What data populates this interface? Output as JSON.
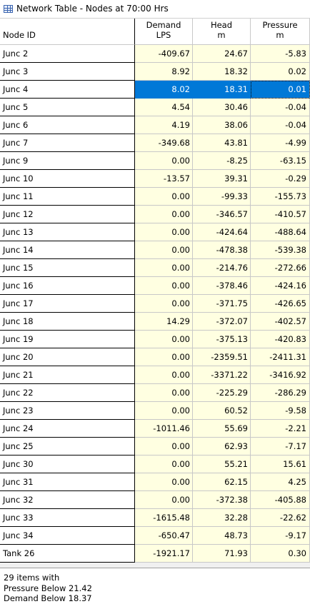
{
  "window": {
    "title": "Network Table - Nodes at 70:00 Hrs"
  },
  "columns": [
    {
      "line1": "Node ID",
      "line2": ""
    },
    {
      "line1": "Demand",
      "line2": "LPS"
    },
    {
      "line1": "Head",
      "line2": "m"
    },
    {
      "line1": "Pressure",
      "line2": "m"
    }
  ],
  "selected_row": 2,
  "rows": [
    [
      "Junc 2",
      "-409.67",
      "24.67",
      "-5.83"
    ],
    [
      "Junc 3",
      "8.92",
      "18.32",
      "0.02"
    ],
    [
      "Junc 4",
      "8.02",
      "18.31",
      "0.01"
    ],
    [
      "Junc 5",
      "4.54",
      "30.46",
      "-0.04"
    ],
    [
      "Junc 6",
      "4.19",
      "38.06",
      "-0.04"
    ],
    [
      "Junc 7",
      "-349.68",
      "43.81",
      "-4.99"
    ],
    [
      "Junc 9",
      "0.00",
      "-8.25",
      "-63.15"
    ],
    [
      "Junc 10",
      "-13.57",
      "39.31",
      "-0.29"
    ],
    [
      "Junc 11",
      "0.00",
      "-99.33",
      "-155.73"
    ],
    [
      "Junc 12",
      "0.00",
      "-346.57",
      "-410.57"
    ],
    [
      "Junc 13",
      "0.00",
      "-424.64",
      "-488.64"
    ],
    [
      "Junc 14",
      "0.00",
      "-478.38",
      "-539.38"
    ],
    [
      "Junc 15",
      "0.00",
      "-214.76",
      "-272.66"
    ],
    [
      "Junc 16",
      "0.00",
      "-378.46",
      "-424.16"
    ],
    [
      "Junc 17",
      "0.00",
      "-371.75",
      "-426.65"
    ],
    [
      "Junc 18",
      "14.29",
      "-372.07",
      "-402.57"
    ],
    [
      "Junc 19",
      "0.00",
      "-375.13",
      "-420.83"
    ],
    [
      "Junc 20",
      "0.00",
      "-2359.51",
      "-2411.31"
    ],
    [
      "Junc 21",
      "0.00",
      "-3371.22",
      "-3416.92"
    ],
    [
      "Junc 22",
      "0.00",
      "-225.29",
      "-286.29"
    ],
    [
      "Junc 23",
      "0.00",
      "60.52",
      "-9.58"
    ],
    [
      "Junc 24",
      "-1011.46",
      "55.69",
      "-2.21"
    ],
    [
      "Junc 25",
      "0.00",
      "62.93",
      "-7.17"
    ],
    [
      "Junc 30",
      "0.00",
      "55.21",
      "15.61"
    ],
    [
      "Junc 31",
      "0.00",
      "62.15",
      "4.25"
    ],
    [
      "Junc 32",
      "0.00",
      "-372.38",
      "-405.88"
    ],
    [
      "Junc 33",
      "-1615.48",
      "32.28",
      "-22.62"
    ],
    [
      "Junc 34",
      "-650.47",
      "48.73",
      "-9.17"
    ],
    [
      "Tank 26",
      "-1921.17",
      "71.93",
      "0.30"
    ]
  ],
  "footer": {
    "line1": "29 items with",
    "line2": "Pressure Below 21.42",
    "line3": "Demand Below 18.37"
  }
}
